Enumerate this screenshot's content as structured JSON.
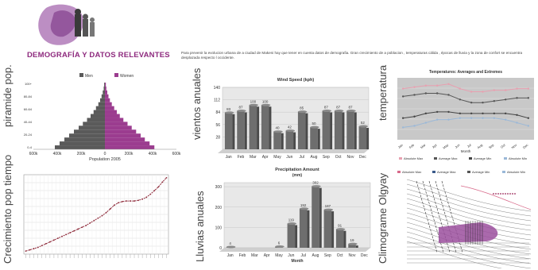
{
  "header": {
    "title": "DEMOGRAFÍA Y DATOS RELEVANTES",
    "intro": "Para prevenir la evolucion urbana de a ciudad de Makeni hay que tener en cuenta datos de demografia. Gran crecimiento de a poblacion , temperaturas cálida , épocas de lluvia  y  la zona de confort se encuentra desplazada respecto l occidente."
  },
  "side_labels": {
    "pyramid": "piramide pop.",
    "growth": "Crecimiento pop tiempo",
    "wind": "vientos anuales",
    "rain": "Lluvias anuales",
    "temp": "temperatura",
    "olgyay": "Climograme Olgyay"
  },
  "colors": {
    "men": "#5a5a5a",
    "women": "#9b3c8f",
    "accent": "#8e2a7e",
    "bar": "#6b6b6b"
  },
  "chart_data": [
    {
      "id": "pyramid",
      "type": "bar",
      "orientation": "horizontal",
      "xlabel": "Population 2005",
      "legend": [
        "Men",
        "Women"
      ],
      "legend_position": "top",
      "age_groups": [
        "0-4",
        "5-9",
        "10-14",
        "15-19",
        "20-24",
        "25-29",
        "30-34",
        "35-39",
        "40-44",
        "45-49",
        "50-54",
        "55-59",
        "60-64",
        "65-69",
        "70-74",
        "75-79",
        "80+"
      ],
      "men": [
        420,
        380,
        340,
        300,
        260,
        220,
        185,
        150,
        120,
        95,
        75,
        55,
        40,
        28,
        18,
        10,
        6
      ],
      "women": [
        415,
        375,
        335,
        300,
        262,
        225,
        190,
        155,
        125,
        100,
        78,
        58,
        42,
        30,
        20,
        12,
        8
      ],
      "xticks": [
        "600k",
        "400k",
        "200k",
        "0",
        "200k",
        "400k",
        "600k"
      ],
      "yticks": [
        "100+",
        "80-84",
        "60-64",
        "40-44",
        "20-24",
        "0-4"
      ],
      "xlim": [
        -600,
        600
      ],
      "units": "thousands"
    },
    {
      "id": "growth",
      "type": "line",
      "x_count": 36,
      "values": [
        5,
        7,
        9,
        11,
        14,
        17,
        20,
        23,
        26,
        29,
        32,
        35,
        38,
        41,
        44,
        47,
        51,
        55,
        59,
        63,
        68,
        74,
        80,
        84,
        86,
        87,
        87,
        87,
        88,
        90,
        93,
        98,
        104,
        110,
        118,
        125
      ],
      "ylim": [
        0,
        130
      ],
      "grid": true
    },
    {
      "id": "wind",
      "type": "bar",
      "title": "Wind Speed (kph)",
      "categories": [
        "Jan",
        "Feb",
        "Mar",
        "Apr",
        "May",
        "Jun",
        "Jul",
        "Aug",
        "Sep",
        "Oct",
        "Nov",
        "Dec"
      ],
      "values": [
        83,
        87,
        100,
        100,
        40,
        42,
        85,
        50,
        87,
        87,
        87,
        52
      ],
      "yticks": [
        "28",
        "56",
        "84",
        "112",
        "140"
      ],
      "ylim": [
        0,
        140
      ],
      "bar_labels": [
        "83",
        "87",
        "100",
        "100",
        "40",
        "42",
        "85",
        "50",
        "87",
        "87",
        "87",
        "52"
      ]
    },
    {
      "id": "rain",
      "type": "bar",
      "title": "Precipitation Amount",
      "subtitle": "(mm)",
      "xlabel": "Month",
      "categories": [
        "Jan",
        "Feb",
        "Mar",
        "Apr",
        "May",
        "Jun",
        "Jul",
        "Aug",
        "Sep",
        "Oct",
        "Nov",
        "Dec"
      ],
      "values": [
        4,
        0,
        0,
        0,
        6,
        119,
        192,
        302,
        187,
        91,
        19,
        0
      ],
      "bar_labels": [
        "4",
        "",
        "",
        "",
        "6",
        "119",
        "192",
        "302",
        "187",
        "91",
        "19",
        ""
      ],
      "yticks": [
        "0",
        "100",
        "200",
        "300"
      ],
      "ylim": [
        0,
        320
      ]
    },
    {
      "id": "temperature",
      "type": "line",
      "title": "Temperatures: Averages and Extremes",
      "xlabel": "Month",
      "categories": [
        "Jan",
        "Feb",
        "Mar",
        "Apr",
        "May",
        "Jun",
        "Jul",
        "Aug",
        "Sep",
        "Oct",
        "Nov",
        "Dec"
      ],
      "series": [
        {
          "name": "Absolute Max",
          "color": "#e8a0b0",
          "values": [
            38,
            39,
            40,
            40,
            41,
            38,
            36,
            36,
            37,
            37,
            38,
            38
          ]
        },
        {
          "name": "Average Max",
          "color": "#555555",
          "values": [
            33,
            34,
            35,
            35,
            34,
            31,
            29,
            29,
            30,
            31,
            32,
            32
          ]
        },
        {
          "name": "Average Min",
          "color": "#444444",
          "values": [
            19,
            20,
            22,
            23,
            23,
            22,
            22,
            22,
            22,
            22,
            21,
            19
          ]
        },
        {
          "name": "Absolute Min",
          "color": "#9ab8d8",
          "values": [
            13,
            14,
            16,
            18,
            18,
            19,
            19,
            19,
            19,
            18,
            16,
            14
          ]
        }
      ],
      "ylim": [
        5,
        45
      ],
      "legend_position": "bottom"
    },
    {
      "id": "olgyay",
      "type": "diagram",
      "legend": [
        "Absolute Max",
        "Average Max",
        "Average Min",
        "Absolute Min"
      ]
    }
  ]
}
